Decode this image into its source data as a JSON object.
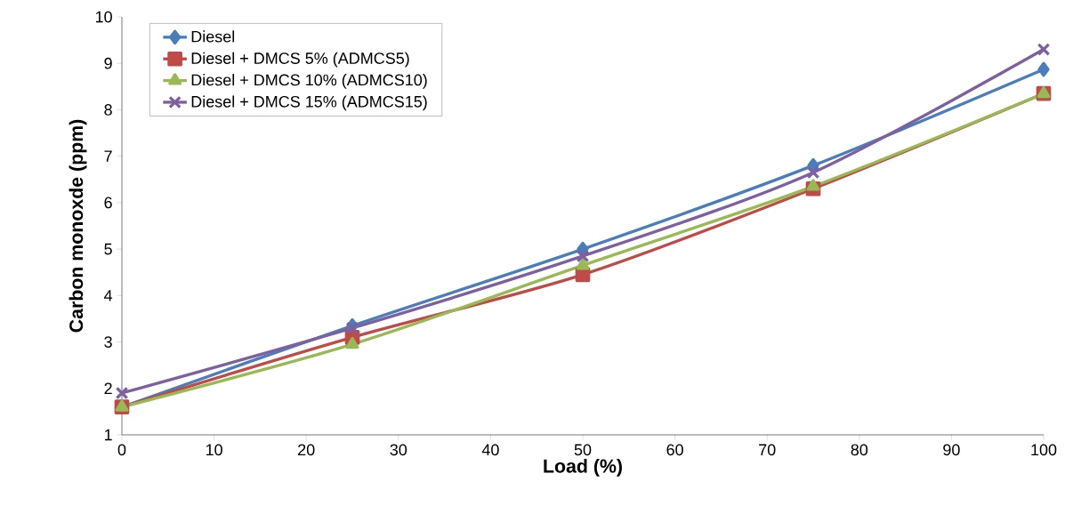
{
  "chart_data": {
    "type": "line",
    "xlabel": "Load (%)",
    "ylabel": "Carbon monoxde (ppm)",
    "x": [
      0,
      25,
      50,
      75,
      100
    ],
    "series": [
      {
        "name": "Diesel",
        "color": "#4a7ebb",
        "marker": "diamond",
        "values": [
          1.6,
          3.35,
          5.0,
          6.8,
          8.87
        ]
      },
      {
        "name": "Diesel + DMCS 5% (ADMCS5)",
        "color": "#be4b48",
        "marker": "square",
        "values": [
          1.6,
          3.1,
          4.45,
          6.3,
          8.35
        ]
      },
      {
        "name": "Diesel + DMCS 10% (ADMCS10)",
        "color": "#98b954",
        "marker": "triangle",
        "values": [
          1.6,
          2.95,
          4.65,
          6.35,
          8.35
        ]
      },
      {
        "name": "Diesel + DMCS 15% (ADMCS15)",
        "color": "#7d60a0",
        "marker": "cross",
        "values": [
          1.9,
          3.3,
          4.85,
          6.65,
          9.3
        ]
      }
    ],
    "xlim": [
      0,
      100
    ],
    "xticks": [
      0,
      10,
      20,
      30,
      40,
      50,
      60,
      70,
      80,
      90,
      100
    ],
    "ylim": [
      1,
      10
    ],
    "yticks": [
      1,
      2,
      3,
      4,
      5,
      6,
      7,
      8,
      9,
      10
    ],
    "grid": false,
    "legend": "top left",
    "line_style": "solid"
  }
}
